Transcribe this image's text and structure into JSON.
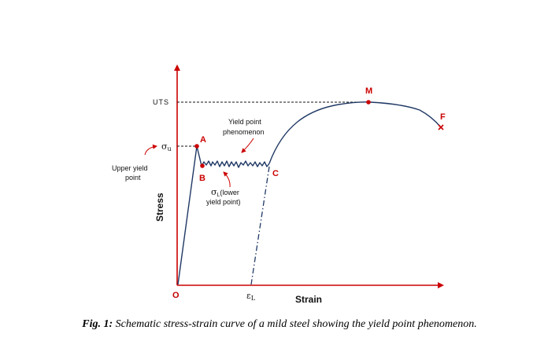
{
  "diagram": {
    "colors": {
      "axis": "#cc0000",
      "curve": "#1f3864",
      "point": "#cc0000",
      "annotation_arrow": "#cc0000",
      "text": "#111111"
    },
    "axes": {
      "x_label": "Strain",
      "y_label": "Stress",
      "origin_label": "O"
    },
    "labels": {
      "uts": "UTS",
      "sigma_u_symbol": "σ",
      "sigma_u_sub": "u",
      "upper_yield_line1": "Upper yield",
      "upper_yield_line2": "point",
      "yield_phenom_line1": "Yield point",
      "yield_phenom_line2": "phenomenon",
      "sigma_l_symbol": "σ",
      "sigma_l_sub": "L",
      "sigma_l_rest": "(lower",
      "sigma_l_line2": "yield point)",
      "eps_l_symbol": "ε",
      "eps_l_sub": "L"
    },
    "points": [
      {
        "id": "A",
        "label": "A",
        "marker": "dot"
      },
      {
        "id": "B",
        "label": "B",
        "marker": "dot"
      },
      {
        "id": "C",
        "label": "C",
        "marker": "none"
      },
      {
        "id": "M",
        "label": "M",
        "marker": "dot"
      },
      {
        "id": "F",
        "label": "F",
        "marker": "cross"
      }
    ],
    "elements": [
      "elastic line O–A",
      "yield drop A–B",
      "serrated yield plateau B–C",
      "strain hardening C–M",
      "necking M–F",
      "unloading line (dash-dot) to εL",
      "UTS dashed guide",
      "σu dashed guide"
    ]
  },
  "caption": {
    "prefix": "Fig. 1:",
    "text": " Schematic stress-strain curve of a mild steel showing the yield point phenomenon."
  }
}
